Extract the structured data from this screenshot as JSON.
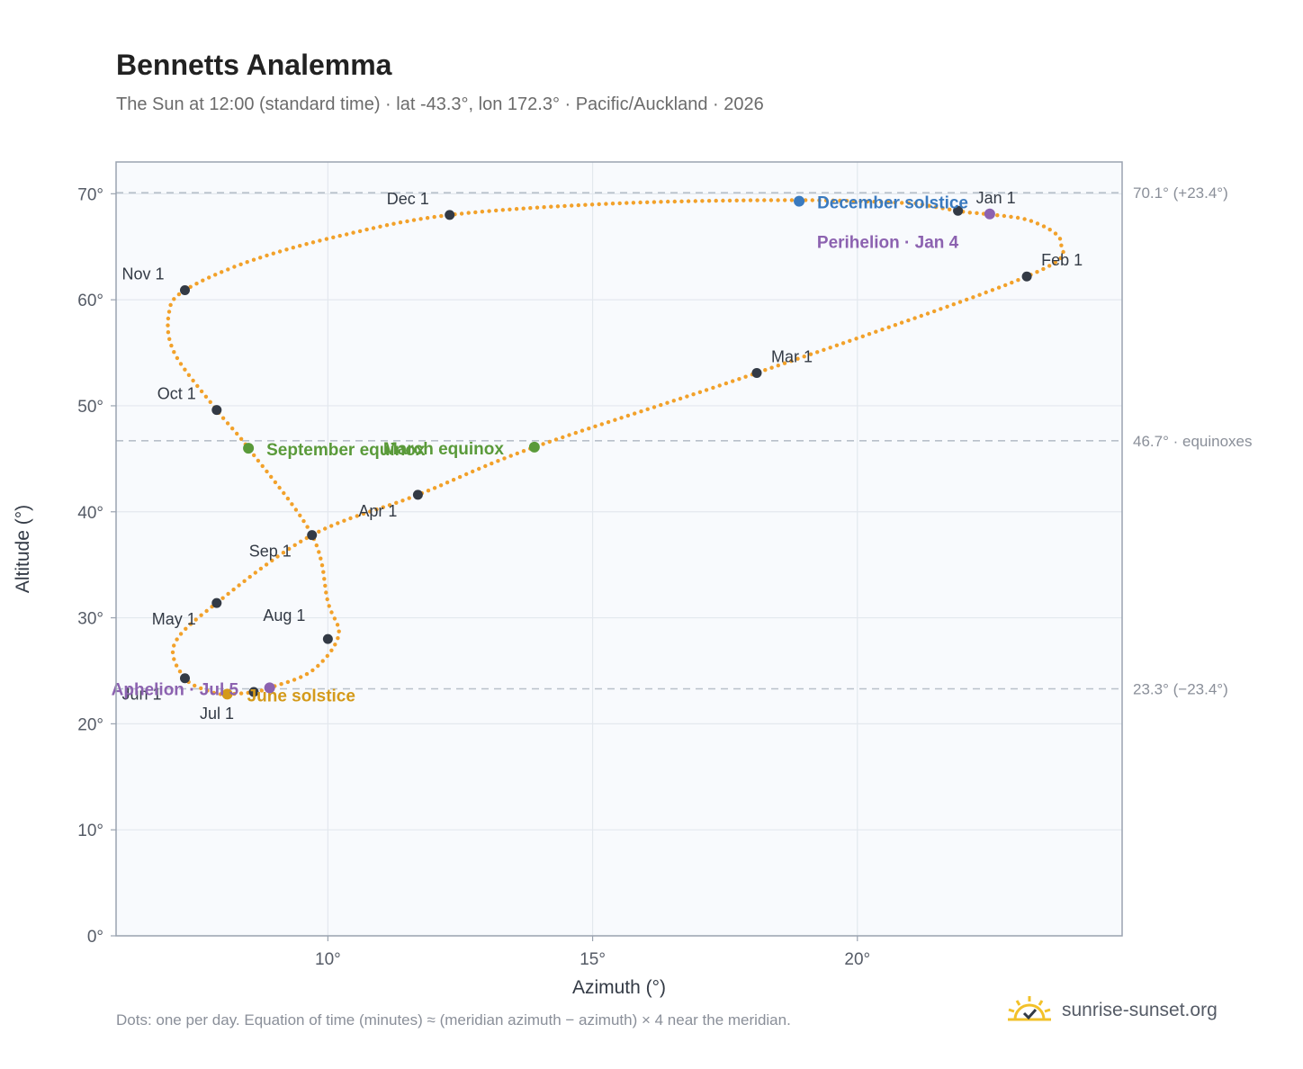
{
  "title": "Bennetts Analemma",
  "subtitle": "The Sun at 12:00 (standard time) · lat -43.3°, lon 172.3° · Pacific/Auckland · 2026",
  "footnote": "Dots: one per day. Equation of time (minutes) ≈ (meridian azimuth − azimuth) × 4 near the meridian.",
  "brand": {
    "name": "sunrise-sunset.org",
    "icon": "sun-logo-icon"
  },
  "colors": {
    "curve": "#f2a12a",
    "month_marker": "#333a45",
    "equinox": "#5a9a3a",
    "december_solstice": "#3a7abf",
    "june_solstice": "#d49a1a",
    "aphelion_perihelion": "#8c62b0",
    "reference_line": "#b8c0ca",
    "plot_bg": "#f8fafd",
    "grid": "#e3e8ee",
    "frame": "#9aa3b0"
  },
  "chart_data": {
    "type": "scatter",
    "xlabel": "Azimuth (°)",
    "ylabel": "Altitude (°)",
    "xlim": [
      6,
      25
    ],
    "ylim": [
      0,
      73
    ],
    "x_ticks": [
      10,
      15,
      20
    ],
    "x_tick_labels": [
      "10°",
      "15°",
      "20°"
    ],
    "y_ticks": [
      0,
      10,
      20,
      30,
      40,
      50,
      60,
      70
    ],
    "y_tick_labels": [
      "0°",
      "10°",
      "20°",
      "30°",
      "40°",
      "50°",
      "60°",
      "70°"
    ],
    "grid": true,
    "reference_lines": [
      {
        "y": 70.1,
        "label": "70.1° (+23.4°)"
      },
      {
        "y": 46.7,
        "label": "46.7° · equinoxes"
      },
      {
        "y": 23.3,
        "label": "23.3° (−23.4°)"
      }
    ],
    "path_anchors": [
      {
        "x": 21.1,
        "y": 69.1
      },
      {
        "x": 22.0,
        "y": 68.3
      },
      {
        "x": 22.4,
        "y": 68.1
      },
      {
        "x": 23.3,
        "y": 67.4
      },
      {
        "x": 23.85,
        "y": 65.3
      },
      {
        "x": 23.2,
        "y": 62.2
      },
      {
        "x": 18.1,
        "y": 53.1
      },
      {
        "x": 13.9,
        "y": 46.1
      },
      {
        "x": 11.7,
        "y": 41.6
      },
      {
        "x": 9.7,
        "y": 37.8
      },
      {
        "x": 7.9,
        "y": 31.4
      },
      {
        "x": 7.1,
        "y": 27.5
      },
      {
        "x": 7.3,
        "y": 24.3
      },
      {
        "x": 7.8,
        "y": 23.0
      },
      {
        "x": 8.1,
        "y": 22.8
      },
      {
        "x": 8.6,
        "y": 23.0
      },
      {
        "x": 8.9,
        "y": 23.4
      },
      {
        "x": 9.7,
        "y": 25.0
      },
      {
        "x": 10.2,
        "y": 28.3
      },
      {
        "x": 10.0,
        "y": 31.5
      },
      {
        "x": 9.7,
        "y": 37.8
      },
      {
        "x": 8.5,
        "y": 46.0
      },
      {
        "x": 7.9,
        "y": 49.6
      },
      {
        "x": 7.1,
        "y": 55.0
      },
      {
        "x": 7.0,
        "y": 58.8
      },
      {
        "x": 7.3,
        "y": 60.9
      },
      {
        "x": 8.5,
        "y": 63.6
      },
      {
        "x": 10.2,
        "y": 66.0
      },
      {
        "x": 12.3,
        "y": 68.0
      },
      {
        "x": 15.5,
        "y": 69.1
      },
      {
        "x": 18.9,
        "y": 69.4
      },
      {
        "x": 21.1,
        "y": 69.1
      }
    ],
    "month_markers": [
      {
        "label": "Jan 1",
        "x": 21.9,
        "y": 68.4
      },
      {
        "label": "Feb 1",
        "x": 23.2,
        "y": 62.2
      },
      {
        "label": "Mar 1",
        "x": 18.1,
        "y": 53.1
      },
      {
        "label": "Apr 1",
        "x": 11.7,
        "y": 41.6
      },
      {
        "label": "May 1",
        "x": 7.9,
        "y": 31.4
      },
      {
        "label": "Jun 1",
        "x": 7.3,
        "y": 24.3
      },
      {
        "label": "Jul 1",
        "x": 8.6,
        "y": 23.0
      },
      {
        "label": "Aug 1",
        "x": 10.0,
        "y": 28.0
      },
      {
        "label": "Sep 1",
        "x": 9.7,
        "y": 37.8
      },
      {
        "label": "Oct 1",
        "x": 7.9,
        "y": 49.6
      },
      {
        "label": "Nov 1",
        "x": 7.3,
        "y": 60.9
      },
      {
        "label": "Dec 1",
        "x": 12.3,
        "y": 68.0
      }
    ],
    "events": [
      {
        "label": "December solstice",
        "x": 18.9,
        "y": 69.3,
        "kind": "december_solstice"
      },
      {
        "label": "Perihelion · Jan 4",
        "x": 22.5,
        "y": 68.1,
        "kind": "aphelion_perihelion"
      },
      {
        "label": "March equinox",
        "x": 13.9,
        "y": 46.1,
        "kind": "equinox"
      },
      {
        "label": "September equinox",
        "x": 8.5,
        "y": 46.0,
        "kind": "equinox"
      },
      {
        "label": "June solstice",
        "x": 8.1,
        "y": 22.8,
        "kind": "june_solstice"
      },
      {
        "label": "Aphelion · Jul 5",
        "x": 8.9,
        "y": 23.4,
        "kind": "aphelion_perihelion"
      }
    ]
  }
}
